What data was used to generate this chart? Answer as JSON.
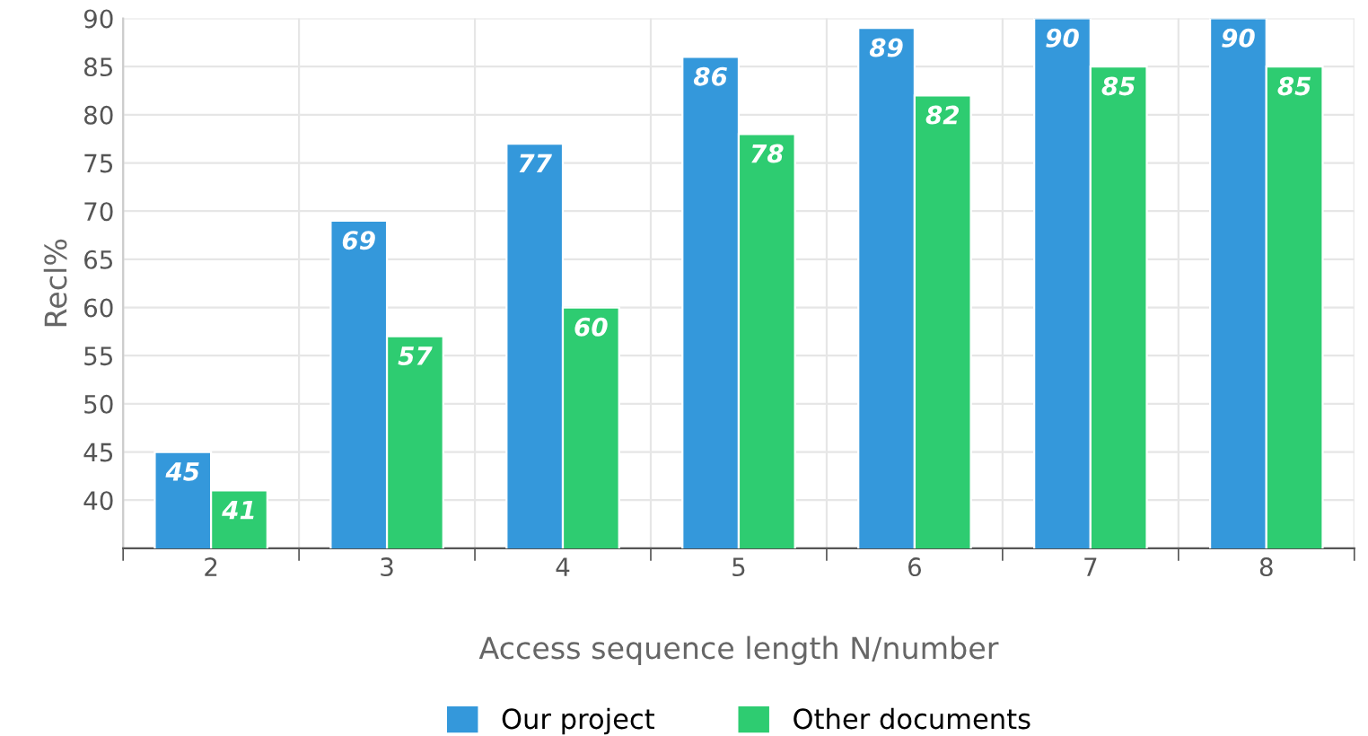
{
  "chart_data": {
    "type": "bar",
    "xlabel": "Access sequence length N/number",
    "ylabel": "Recl%",
    "categories": [
      "2",
      "3",
      "4",
      "5",
      "6",
      "7",
      "8"
    ],
    "series": [
      {
        "name": "Our project",
        "color": "#3498db",
        "values": [
          45,
          69,
          77,
          86,
          89,
          90,
          90
        ]
      },
      {
        "name": "Other documents",
        "color": "#2ecc71",
        "values": [
          41,
          57,
          60,
          78,
          82,
          85,
          85
        ]
      }
    ],
    "ylim": [
      35,
      90
    ],
    "yticks": [
      40,
      45,
      50,
      55,
      60,
      65,
      70,
      75,
      80,
      85,
      90
    ],
    "grid": true,
    "legend": "bottom",
    "data_labels": true
  }
}
